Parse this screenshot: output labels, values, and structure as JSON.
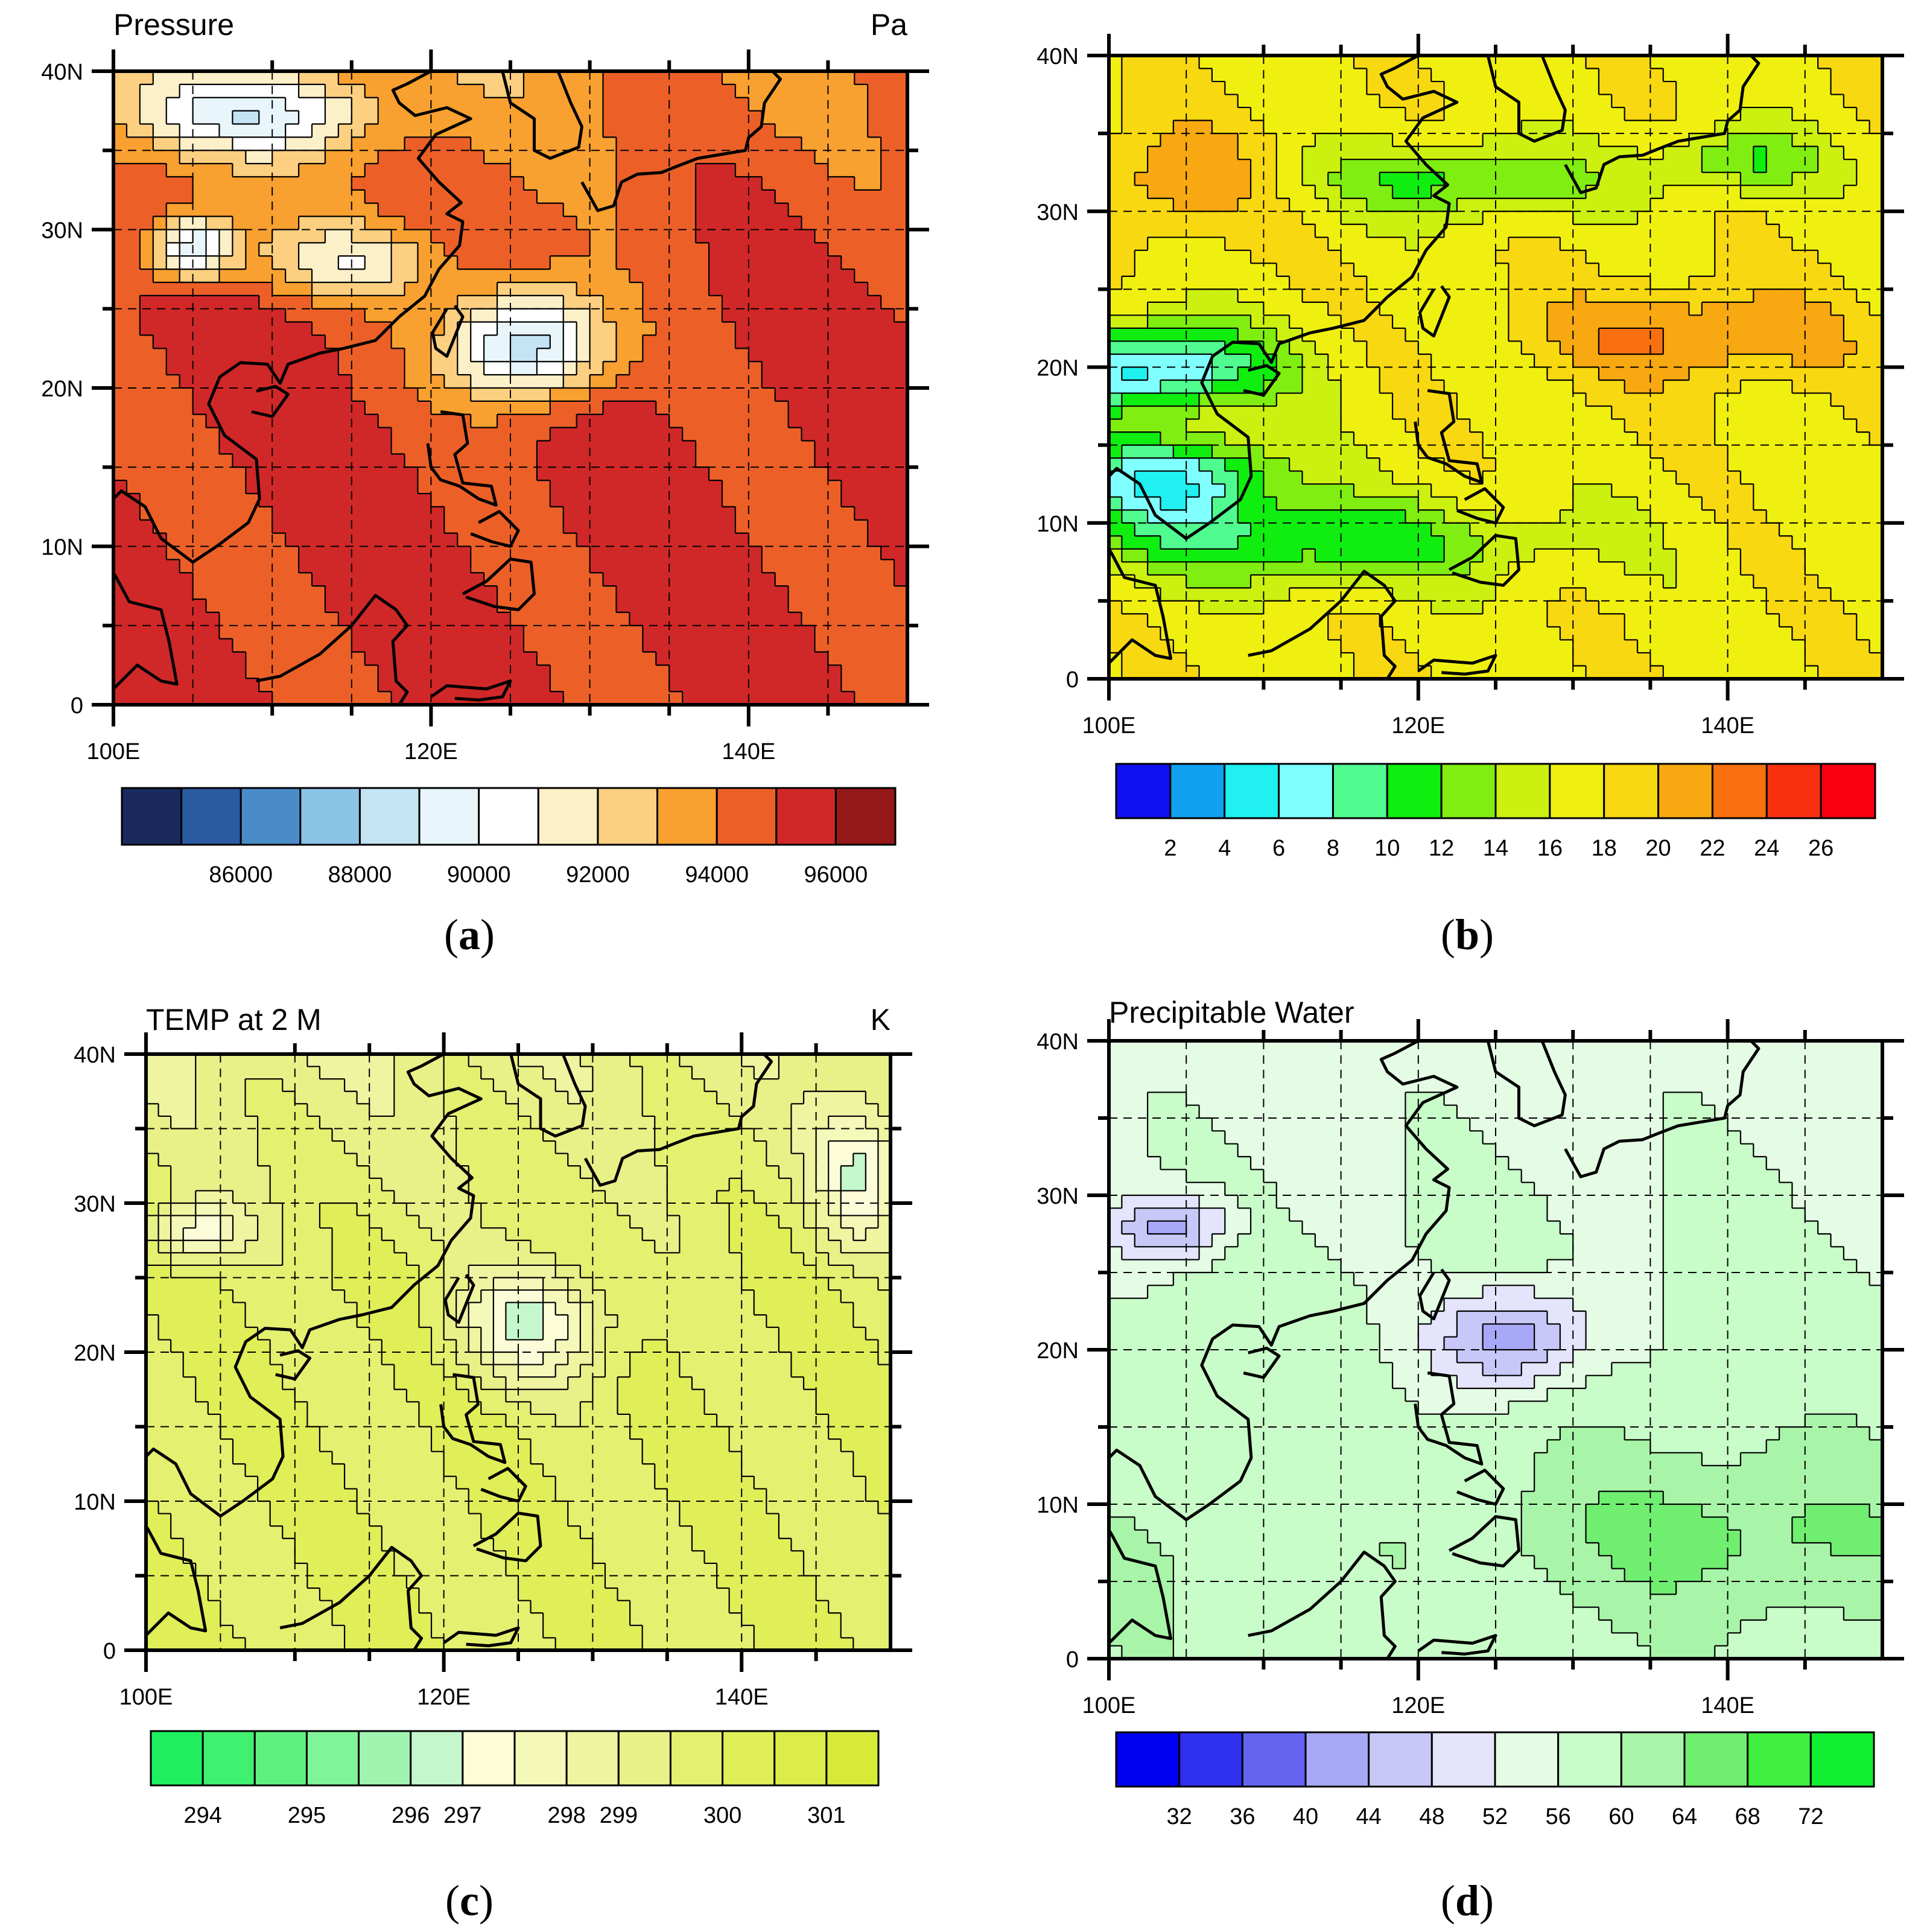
{
  "panels": [
    {
      "id": "a",
      "title_left": "Pressure",
      "title_right": "Pa",
      "caption_letter": "a",
      "lat_labels": [
        "0",
        "10N",
        "20N",
        "30N",
        "40N"
      ],
      "lon_labels": [
        "100E",
        "120E",
        "140E"
      ],
      "field": "pressure",
      "colorbar": {
        "colors": [
          "#1a2a5e",
          "#2a5aa0",
          "#4a8cc8",
          "#8cc4e8",
          "#c4e4f4",
          "#e8f6fc",
          "#ffffff",
          "#fcf0c8",
          "#fcd080",
          "#f8a030",
          "#ec6028",
          "#d02828",
          "#941818"
        ],
        "labels": [
          "86000",
          "88000",
          "90000",
          "92000",
          "94000",
          "96000"
        ]
      }
    },
    {
      "id": "b",
      "title_left": "",
      "title_right": "",
      "caption_letter": "b",
      "lat_labels": [
        "0",
        "10N",
        "20N",
        "30N",
        "40N"
      ],
      "lon_labels": [
        "100E",
        "120E",
        "140E"
      ],
      "field": "wind",
      "colorbar": {
        "colors": [
          "#1010f0",
          "#10a0f0",
          "#20f0f0",
          "#80ffff",
          "#50fc90",
          "#10ee10",
          "#80ee10",
          "#ccf010",
          "#f0f010",
          "#f8d810",
          "#f8a810",
          "#f87010",
          "#f83010",
          "#f80010"
        ],
        "labels": [
          "2",
          "4",
          "6",
          "8",
          "10",
          "12",
          "14",
          "16",
          "18",
          "20",
          "22",
          "24",
          "26"
        ]
      }
    },
    {
      "id": "c",
      "title_left": "TEMP at 2 M",
      "title_right": "K",
      "caption_letter": "c",
      "lat_labels": [
        "0",
        "10N",
        "20N",
        "30N",
        "40N"
      ],
      "lon_labels": [
        "100E",
        "120E",
        "140E"
      ],
      "field": "temp",
      "colorbar": {
        "colors": [
          "#20f060",
          "#40f070",
          "#60f080",
          "#80f498",
          "#a0f4b0",
          "#c4f8cc",
          "#fcfcd8",
          "#f4f8b8",
          "#eef4a0",
          "#e8f088",
          "#e4f070",
          "#e0ee58",
          "#dcec48",
          "#d8ea38"
        ],
        "labels": [
          "294",
          "295",
          "296",
          "297",
          "298",
          "299",
          "300",
          "301"
        ]
      }
    },
    {
      "id": "d",
      "title_left": "Precipitable Water",
      "title_right": "",
      "caption_letter": "d",
      "lat_labels": [
        "0",
        "10N",
        "20N",
        "30N",
        "40N"
      ],
      "lon_labels": [
        "100E",
        "120E",
        "140E"
      ],
      "field": "pw",
      "colorbar": {
        "colors": [
          "#0000f0",
          "#3030f0",
          "#6464f0",
          "#a8a8f8",
          "#c8c8f8",
          "#e4e4fc",
          "#e4fce4",
          "#c8fcc8",
          "#a8f4a8",
          "#70ee70",
          "#40ee40",
          "#10ee30"
        ],
        "labels": [
          "32",
          "36",
          "40",
          "44",
          "48",
          "52",
          "56",
          "60",
          "64",
          "68",
          "72"
        ]
      }
    }
  ],
  "caption_parens": [
    "(",
    ")"
  ]
}
